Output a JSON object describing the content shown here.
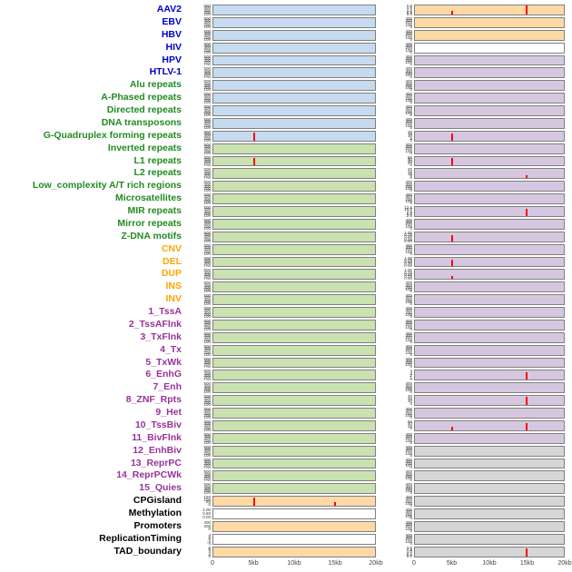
{
  "chart_data": {
    "type": "bar",
    "description": "Two-column multi-track genomic feature figure: 44 labeled rows of small signal panels over a 0-20kb window; red vertical spikes mark enrichment peaks (mostly at 5kb and 15kb).",
    "columns": 2,
    "x_range_kb": [
      0,
      20
    ],
    "x_ticks": [
      "0",
      "5kb",
      "10kb",
      "15kb",
      "20kb"
    ],
    "spike_format": "[x_kb, height_fraction_of_panel]",
    "colors": {
      "label": {
        "virus": "#0000CD",
        "repeat": "#228B22",
        "sv": "#FFA500",
        "state": "#993399",
        "other": "#000000"
      },
      "panel": {
        "blue": "#C6DBEF",
        "green": "#C9E2AF",
        "orange": "#FDD9A6",
        "purple": "#D6C7E1",
        "gray": "#D6D6D6",
        "white": "#FFFFFF"
      },
      "spike": "#FF0000",
      "panel_border": "#7F7F7F"
    },
    "ytick_sets": {
      "g500": [
        "500",
        "400",
        "300",
        "200",
        "100"
      ],
      "g400": [
        "400",
        "300",
        "200",
        "100",
        "0"
      ],
      "aav2": [
        "2.0",
        "1.5",
        "1.0",
        "0.5",
        "0.0"
      ],
      "pct": [
        "1.00",
        "0.75",
        "0.50",
        "0.25",
        "0.00"
      ],
      "gq": [
        "20",
        "15",
        "10",
        "5",
        "0"
      ],
      "l1": [
        "80",
        "60",
        "40",
        "20",
        "0"
      ],
      "l2": [
        "20",
        "15",
        "10",
        "5",
        "0"
      ],
      "mir": [
        "12.5",
        "10.0",
        "7.5",
        "5.0",
        "2.5"
      ],
      "enhg": [
        "4",
        "3",
        "2",
        "1",
        "0"
      ],
      "znf": [
        "30",
        "20",
        "10",
        "0"
      ],
      "tssbiv": [
        "60",
        "40",
        "20",
        "0"
      ],
      "cpg": [
        "150",
        "100",
        "50",
        "0"
      ],
      "meth": [
        "1.00",
        "0.50",
        "0.00"
      ],
      "prom": [
        "400",
        "200",
        "0"
      ],
      "rep": [
        "4",
        "2",
        "0",
        "-2",
        "-4"
      ],
      "tad": [
        "8",
        "6",
        "4",
        "2",
        "0"
      ],
      "tadr": [
        "2.0",
        "1.5",
        "1.0",
        "0.5",
        "0.0"
      ]
    },
    "rows": [
      {
        "label": "AAV2",
        "lc": "virus",
        "l": {
          "bg": "blue",
          "yt": "g500",
          "sp": []
        },
        "r": {
          "bg": "orange",
          "yt": "aav2",
          "sp": [
            [
              5,
              0.4
            ],
            [
              15,
              1.0
            ]
          ]
        }
      },
      {
        "label": "EBV",
        "lc": "virus",
        "l": {
          "bg": "blue",
          "yt": "g500",
          "sp": []
        },
        "r": {
          "bg": "orange",
          "yt": "g400",
          "sp": []
        }
      },
      {
        "label": "HBV",
        "lc": "virus",
        "l": {
          "bg": "blue",
          "yt": "g500",
          "sp": []
        },
        "r": {
          "bg": "orange",
          "yt": "g400",
          "sp": []
        }
      },
      {
        "label": "HIV",
        "lc": "virus",
        "l": {
          "bg": "blue",
          "yt": "g500",
          "sp": []
        },
        "r": {
          "bg": "white",
          "yt": "g400",
          "sp": []
        }
      },
      {
        "label": "HPV",
        "lc": "virus",
        "l": {
          "bg": "blue",
          "yt": "g500",
          "sp": []
        },
        "r": {
          "bg": "purple",
          "yt": "g400",
          "sp": []
        }
      },
      {
        "label": "HTLV-1",
        "lc": "virus",
        "l": {
          "bg": "blue",
          "yt": "g500",
          "sp": []
        },
        "r": {
          "bg": "purple",
          "yt": "g400",
          "sp": []
        }
      },
      {
        "label": "Alu repeats",
        "lc": "repeat",
        "l": {
          "bg": "blue",
          "yt": "g500",
          "sp": []
        },
        "r": {
          "bg": "purple",
          "yt": "g400",
          "sp": []
        }
      },
      {
        "label": "A-Phased repeats",
        "lc": "repeat",
        "l": {
          "bg": "blue",
          "yt": "g500",
          "sp": []
        },
        "r": {
          "bg": "purple",
          "yt": "g400",
          "sp": []
        }
      },
      {
        "label": "Directed repeats",
        "lc": "repeat",
        "l": {
          "bg": "blue",
          "yt": "g500",
          "sp": []
        },
        "r": {
          "bg": "purple",
          "yt": "g400",
          "sp": []
        }
      },
      {
        "label": "DNA transposons",
        "lc": "repeat",
        "l": {
          "bg": "blue",
          "yt": "g500",
          "sp": []
        },
        "r": {
          "bg": "purple",
          "yt": "g400",
          "sp": []
        }
      },
      {
        "label": "G-Quadruplex forming repeats",
        "lc": "repeat",
        "l": {
          "bg": "blue",
          "yt": "g500",
          "sp": [
            [
              5,
              0.85
            ]
          ]
        },
        "r": {
          "bg": "purple",
          "yt": "gq",
          "sp": [
            [
              5,
              0.8
            ]
          ]
        }
      },
      {
        "label": "Inverted repeats",
        "lc": "repeat",
        "l": {
          "bg": "green",
          "yt": "g500",
          "sp": []
        },
        "r": {
          "bg": "purple",
          "yt": "g400",
          "sp": []
        }
      },
      {
        "label": "L1 repeats",
        "lc": "repeat",
        "l": {
          "bg": "green",
          "yt": "g500",
          "sp": [
            [
              5,
              0.9
            ]
          ]
        },
        "r": {
          "bg": "purple",
          "yt": "l1",
          "sp": [
            [
              5,
              0.85
            ]
          ]
        }
      },
      {
        "label": "L2 repeats",
        "lc": "repeat",
        "l": {
          "bg": "green",
          "yt": "g500",
          "sp": []
        },
        "r": {
          "bg": "purple",
          "yt": "l2",
          "sp": [
            [
              15,
              0.35
            ]
          ]
        }
      },
      {
        "label": "Low_complexity A/T rich regions",
        "lc": "repeat",
        "l": {
          "bg": "green",
          "yt": "g500",
          "sp": []
        },
        "r": {
          "bg": "purple",
          "yt": "g400",
          "sp": []
        }
      },
      {
        "label": "Microsatellites",
        "lc": "repeat",
        "l": {
          "bg": "green",
          "yt": "g500",
          "sp": []
        },
        "r": {
          "bg": "purple",
          "yt": "g400",
          "sp": []
        }
      },
      {
        "label": "MIR repeats",
        "lc": "repeat",
        "l": {
          "bg": "green",
          "yt": "g500",
          "sp": []
        },
        "r": {
          "bg": "purple",
          "yt": "mir",
          "sp": [
            [
              15,
              0.75
            ]
          ]
        }
      },
      {
        "label": "Mirror repeats",
        "lc": "repeat",
        "l": {
          "bg": "green",
          "yt": "g500",
          "sp": []
        },
        "r": {
          "bg": "purple",
          "yt": "g400",
          "sp": []
        }
      },
      {
        "label": "Z-DNA motifs",
        "lc": "repeat",
        "l": {
          "bg": "green",
          "yt": "g500",
          "sp": []
        },
        "r": {
          "bg": "purple",
          "yt": "pct",
          "sp": [
            [
              5,
              0.7
            ]
          ]
        }
      },
      {
        "label": "CNV",
        "lc": "sv",
        "l": {
          "bg": "green",
          "yt": "g500",
          "sp": []
        },
        "r": {
          "bg": "purple",
          "yt": "g400",
          "sp": []
        }
      },
      {
        "label": "DEL",
        "lc": "sv",
        "l": {
          "bg": "green",
          "yt": "g500",
          "sp": []
        },
        "r": {
          "bg": "purple",
          "yt": "pct",
          "sp": [
            [
              5,
              0.75
            ]
          ]
        }
      },
      {
        "label": "DUP",
        "lc": "sv",
        "l": {
          "bg": "green",
          "yt": "g500",
          "sp": []
        },
        "r": {
          "bg": "purple",
          "yt": "pct",
          "sp": [
            [
              5,
              0.35
            ]
          ]
        }
      },
      {
        "label": "INS",
        "lc": "sv",
        "l": {
          "bg": "green",
          "yt": "g500",
          "sp": []
        },
        "r": {
          "bg": "purple",
          "yt": "g400",
          "sp": []
        }
      },
      {
        "label": "INV",
        "lc": "sv",
        "l": {
          "bg": "green",
          "yt": "g500",
          "sp": []
        },
        "r": {
          "bg": "purple",
          "yt": "g400",
          "sp": []
        }
      },
      {
        "label": "1_TssA",
        "lc": "state",
        "l": {
          "bg": "green",
          "yt": "g500",
          "sp": []
        },
        "r": {
          "bg": "purple",
          "yt": "g400",
          "sp": []
        }
      },
      {
        "label": "2_TssAFlnk",
        "lc": "state",
        "l": {
          "bg": "green",
          "yt": "g500",
          "sp": []
        },
        "r": {
          "bg": "purple",
          "yt": "g400",
          "sp": []
        }
      },
      {
        "label": "3_TxFlnk",
        "lc": "state",
        "l": {
          "bg": "green",
          "yt": "g500",
          "sp": []
        },
        "r": {
          "bg": "purple",
          "yt": "g400",
          "sp": []
        }
      },
      {
        "label": "4_Tx",
        "lc": "state",
        "l": {
          "bg": "green",
          "yt": "g500",
          "sp": []
        },
        "r": {
          "bg": "purple",
          "yt": "g400",
          "sp": []
        }
      },
      {
        "label": "5_TxWk",
        "lc": "state",
        "l": {
          "bg": "green",
          "yt": "g500",
          "sp": []
        },
        "r": {
          "bg": "purple",
          "yt": "g400",
          "sp": []
        }
      },
      {
        "label": "6_EnhG",
        "lc": "state",
        "l": {
          "bg": "green",
          "yt": "g500",
          "sp": []
        },
        "r": {
          "bg": "purple",
          "yt": "enhg",
          "sp": [
            [
              15,
              0.8
            ]
          ]
        }
      },
      {
        "label": "7_Enh",
        "lc": "state",
        "l": {
          "bg": "green",
          "yt": "g500",
          "sp": []
        },
        "r": {
          "bg": "purple",
          "yt": "g400",
          "sp": []
        }
      },
      {
        "label": "8_ZNF_Rpts",
        "lc": "state",
        "l": {
          "bg": "green",
          "yt": "g500",
          "sp": []
        },
        "r": {
          "bg": "purple",
          "yt": "znf",
          "sp": [
            [
              15,
              0.9
            ]
          ]
        }
      },
      {
        "label": "9_Het",
        "lc": "state",
        "l": {
          "bg": "green",
          "yt": "g500",
          "sp": []
        },
        "r": {
          "bg": "purple",
          "yt": "g400",
          "sp": []
        }
      },
      {
        "label": "10_TssBiv",
        "lc": "state",
        "l": {
          "bg": "green",
          "yt": "g500",
          "sp": []
        },
        "r": {
          "bg": "purple",
          "yt": "tssbiv",
          "sp": [
            [
              5,
              0.35
            ],
            [
              15,
              0.8
            ]
          ]
        }
      },
      {
        "label": "11_BivFlnk",
        "lc": "state",
        "l": {
          "bg": "green",
          "yt": "g500",
          "sp": []
        },
        "r": {
          "bg": "purple",
          "yt": "g400",
          "sp": []
        }
      },
      {
        "label": "12_EnhBiv",
        "lc": "state",
        "l": {
          "bg": "green",
          "yt": "g500",
          "sp": []
        },
        "r": {
          "bg": "gray",
          "yt": "g400",
          "sp": []
        }
      },
      {
        "label": "13_ReprPC",
        "lc": "state",
        "l": {
          "bg": "green",
          "yt": "g500",
          "sp": []
        },
        "r": {
          "bg": "gray",
          "yt": "g400",
          "sp": []
        }
      },
      {
        "label": "14_ReprPCWk",
        "lc": "state",
        "l": {
          "bg": "green",
          "yt": "g500",
          "sp": []
        },
        "r": {
          "bg": "gray",
          "yt": "g400",
          "sp": []
        }
      },
      {
        "label": "15_Quies",
        "lc": "state",
        "l": {
          "bg": "green",
          "yt": "g500",
          "sp": []
        },
        "r": {
          "bg": "gray",
          "yt": "g400",
          "sp": []
        }
      },
      {
        "label": "CPGisland",
        "lc": "other",
        "l": {
          "bg": "orange",
          "yt": "cpg",
          "sp": [
            [
              5,
              0.9
            ],
            [
              15,
              0.45
            ]
          ]
        },
        "r": {
          "bg": "gray",
          "yt": "g400",
          "sp": []
        }
      },
      {
        "label": "Methylation",
        "lc": "other",
        "l": {
          "bg": "white",
          "yt": "meth",
          "sp": []
        },
        "r": {
          "bg": "gray",
          "yt": "g400",
          "sp": []
        }
      },
      {
        "label": "Promoters",
        "lc": "other",
        "l": {
          "bg": "orange",
          "yt": "prom",
          "sp": []
        },
        "r": {
          "bg": "gray",
          "yt": "g400",
          "sp": []
        }
      },
      {
        "label": "ReplicationTiming",
        "lc": "other",
        "l": {
          "bg": "white",
          "yt": "rep",
          "sp": []
        },
        "r": {
          "bg": "gray",
          "yt": "g400",
          "sp": []
        }
      },
      {
        "label": "TAD_boundary",
        "lc": "other",
        "l": {
          "bg": "orange",
          "yt": "tad",
          "sp": []
        },
        "r": {
          "bg": "gray",
          "yt": "tadr",
          "sp": [
            [
              15,
              0.85
            ]
          ]
        }
      }
    ]
  }
}
